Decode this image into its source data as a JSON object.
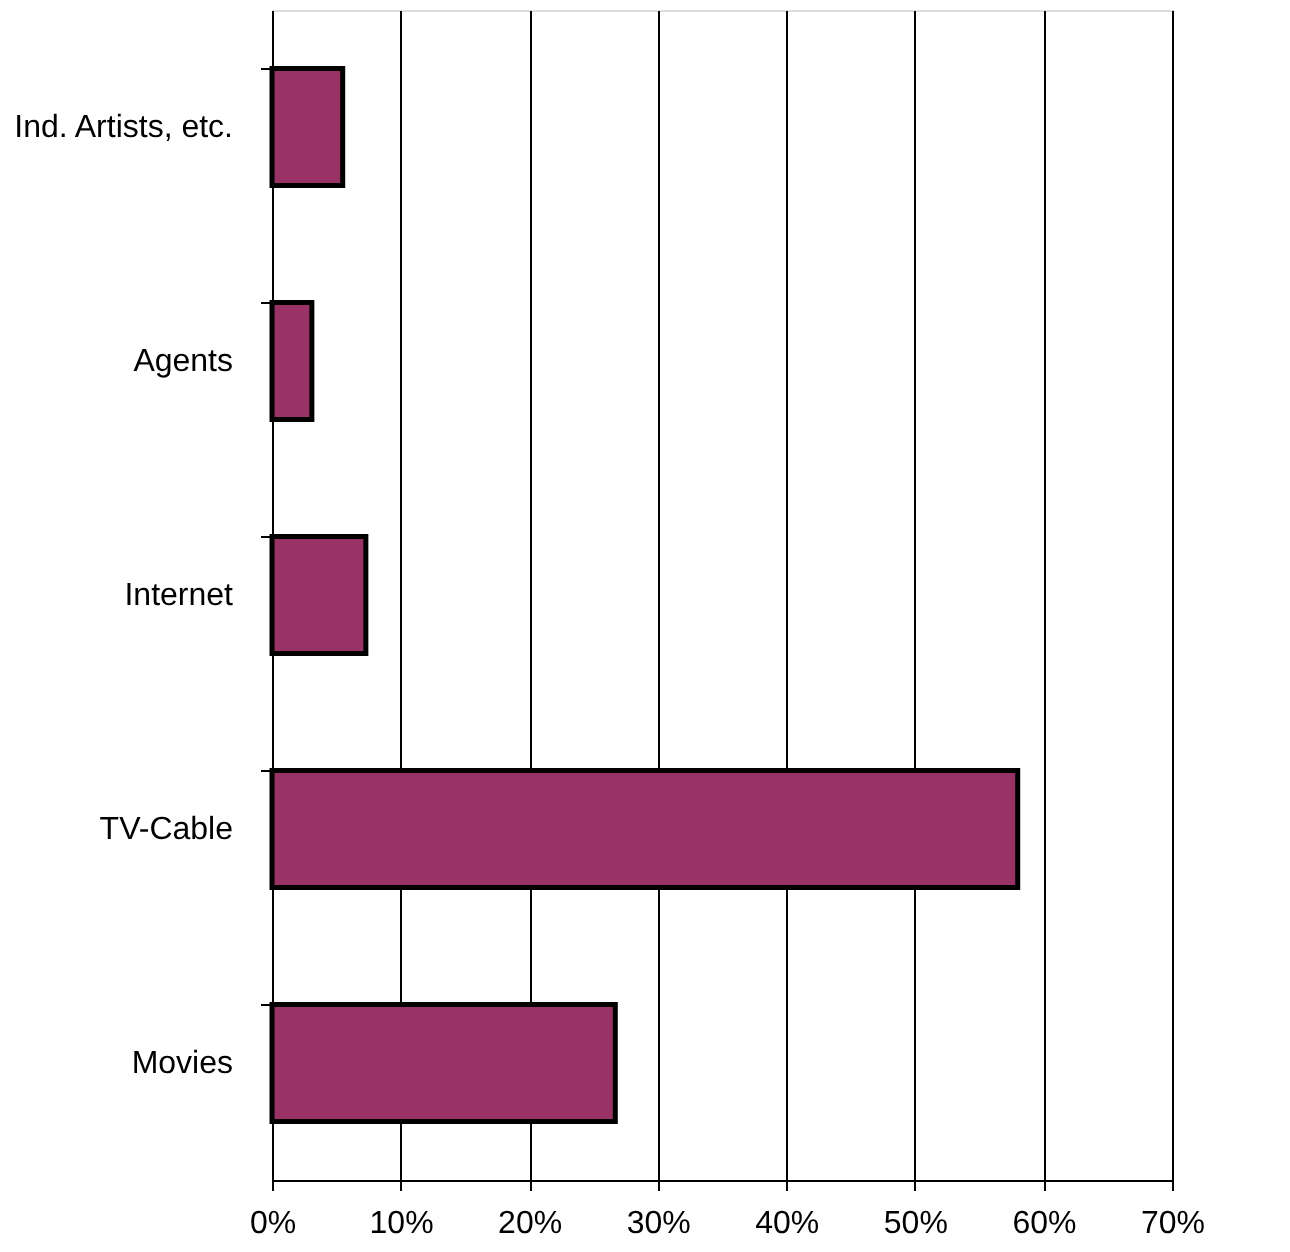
{
  "chart_data": {
    "type": "bar",
    "orientation": "horizontal",
    "categories": [
      "Ind. Artists, etc.",
      "Agents",
      "Internet",
      "TV-Cable",
      "Movies"
    ],
    "values": [
      5.5,
      3.1,
      7.3,
      58.0,
      26.7
    ],
    "color": "#993366",
    "xlim": [
      0,
      70
    ],
    "xticks": [
      {
        "value": 0,
        "label": "0%"
      },
      {
        "value": 10,
        "label": "10%"
      },
      {
        "value": 20,
        "label": "20%"
      },
      {
        "value": 30,
        "label": "30%"
      },
      {
        "value": 40,
        "label": "40%"
      },
      {
        "value": 50,
        "label": "50%"
      },
      {
        "value": 60,
        "label": "60%"
      },
      {
        "value": 70,
        "label": "70%"
      }
    ],
    "grid": "x"
  }
}
